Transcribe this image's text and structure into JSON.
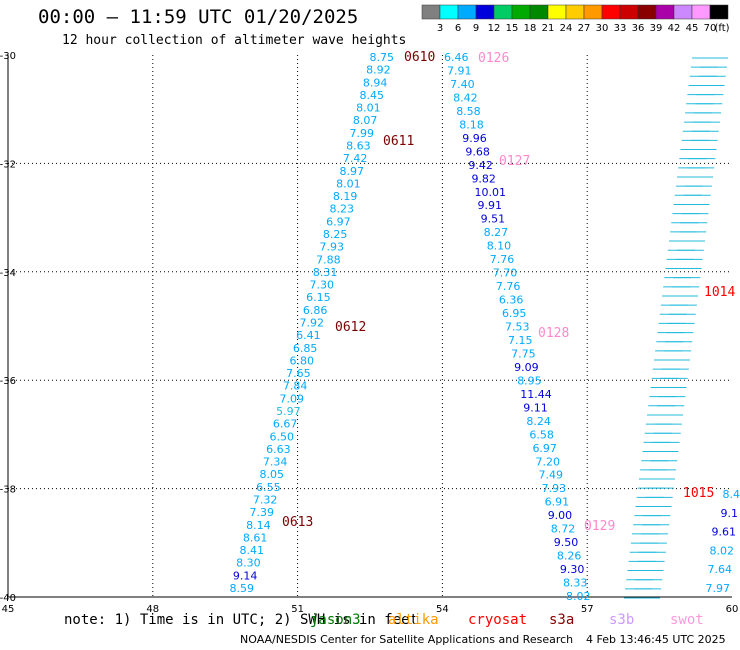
{
  "title": "00:00 – 11:59 UTC 01/20/2025",
  "subtitle": "12 hour collection of altimeter wave heights",
  "colorbar": {
    "unit_label": "(ft)",
    "ticks": [
      "3",
      "6",
      "9",
      "12",
      "15",
      "18",
      "21",
      "24",
      "27",
      "30",
      "33",
      "36",
      "39",
      "42",
      "45",
      "70"
    ],
    "colors": [
      "#808080",
      "#00ffff",
      "#00aaff",
      "#0000dd",
      "#00cc66",
      "#00aa00",
      "#008800",
      "#ffff00",
      "#ffcc00",
      "#ff9900",
      "#ff0000",
      "#cc0000",
      "#880000",
      "#aa00aa",
      "#cc88ff",
      "#ff99ff",
      "#000000"
    ]
  },
  "axes": {
    "lon_ticks": [
      "45",
      "48",
      "51",
      "54",
      "57",
      "60"
    ],
    "lat_ticks": [
      "-30",
      "-32",
      "-34",
      "-36",
      "-38",
      "-40"
    ]
  },
  "map_data": {
    "tracks": [
      {
        "label": "0610",
        "label_color": "#7a0000",
        "values": [
          "8.75",
          "8.92",
          "8.94",
          "8.45",
          "8.01",
          "8.07",
          "7.99",
          "8.63",
          "7.42",
          "8.97",
          "8.01",
          "8.19",
          "8.23",
          "6.97",
          "8.25",
          "7.93",
          "7.88",
          "8.31",
          "7.30",
          "6.15",
          "6.86",
          "7.92",
          "6.41",
          "6.85",
          "6.80",
          "7.65",
          "7.84",
          "7.09",
          "5.97",
          "6.67",
          "6.50",
          "6.63",
          "7.34",
          "8.05",
          "6.55",
          "7.32",
          "7.39",
          "8.14",
          "8.61",
          "8.41",
          "8.30",
          "9.14",
          "8.59"
        ]
      },
      {
        "label": "0611",
        "label_color": "#7a0000"
      },
      {
        "label": "0612",
        "label_color": "#7a0000"
      },
      {
        "label": "0613",
        "label_color": "#7a0000"
      },
      {
        "label": "0126",
        "label_color": "#ff88cc",
        "values": [
          "6.46",
          "7.91",
          "7.40",
          "8.42",
          "8.58",
          "8.18",
          "9.96",
          "9.68",
          "9.42",
          "9.82",
          "10.01",
          "9.91",
          "9.51",
          "8.27",
          "8.10",
          "7.76",
          "7.70",
          "7.76",
          "6.36",
          "6.95",
          "7.53",
          "7.15",
          "7.75",
          "9.09",
          "8.95",
          "11.44",
          "9.11",
          "8.24",
          "6.58",
          "6.97",
          "7.20",
          "7.49",
          "7.93",
          "6.91",
          "9.00",
          "8.72",
          "9.50",
          "8.26",
          "9.30",
          "8.33",
          "8.02"
        ]
      },
      {
        "label": "0127",
        "label_color": "#ff88cc"
      },
      {
        "label": "0128",
        "label_color": "#ff88cc"
      },
      {
        "label": "0129",
        "label_color": "#ff88cc"
      },
      {
        "label": "1014",
        "label_color": "#ff0000",
        "values": [
          "7.97",
          "7.64",
          "8.02",
          "9.61",
          "9.1",
          "8.4"
        ]
      },
      {
        "label": "1015",
        "label_color": "#ff0000"
      }
    ]
  },
  "footer": {
    "note": "note: 1) Time is in UTC; 2) SWH is in feet",
    "satellites": [
      {
        "name": "jason3",
        "color": "#007700"
      },
      {
        "name": "altika",
        "color": "#ff9900"
      },
      {
        "name": "cryosat",
        "color": "#ff0000"
      },
      {
        "name": "s3a",
        "color": "#880000"
      },
      {
        "name": "s3b",
        "color": "#cc99ff"
      },
      {
        "name": "swot",
        "color": "#ff99dd"
      }
    ],
    "credit": "NOAA/NESDIS Center for Satellite Applications and Research",
    "timestamp": "4 Feb 13:46:45 UTC 2025"
  }
}
